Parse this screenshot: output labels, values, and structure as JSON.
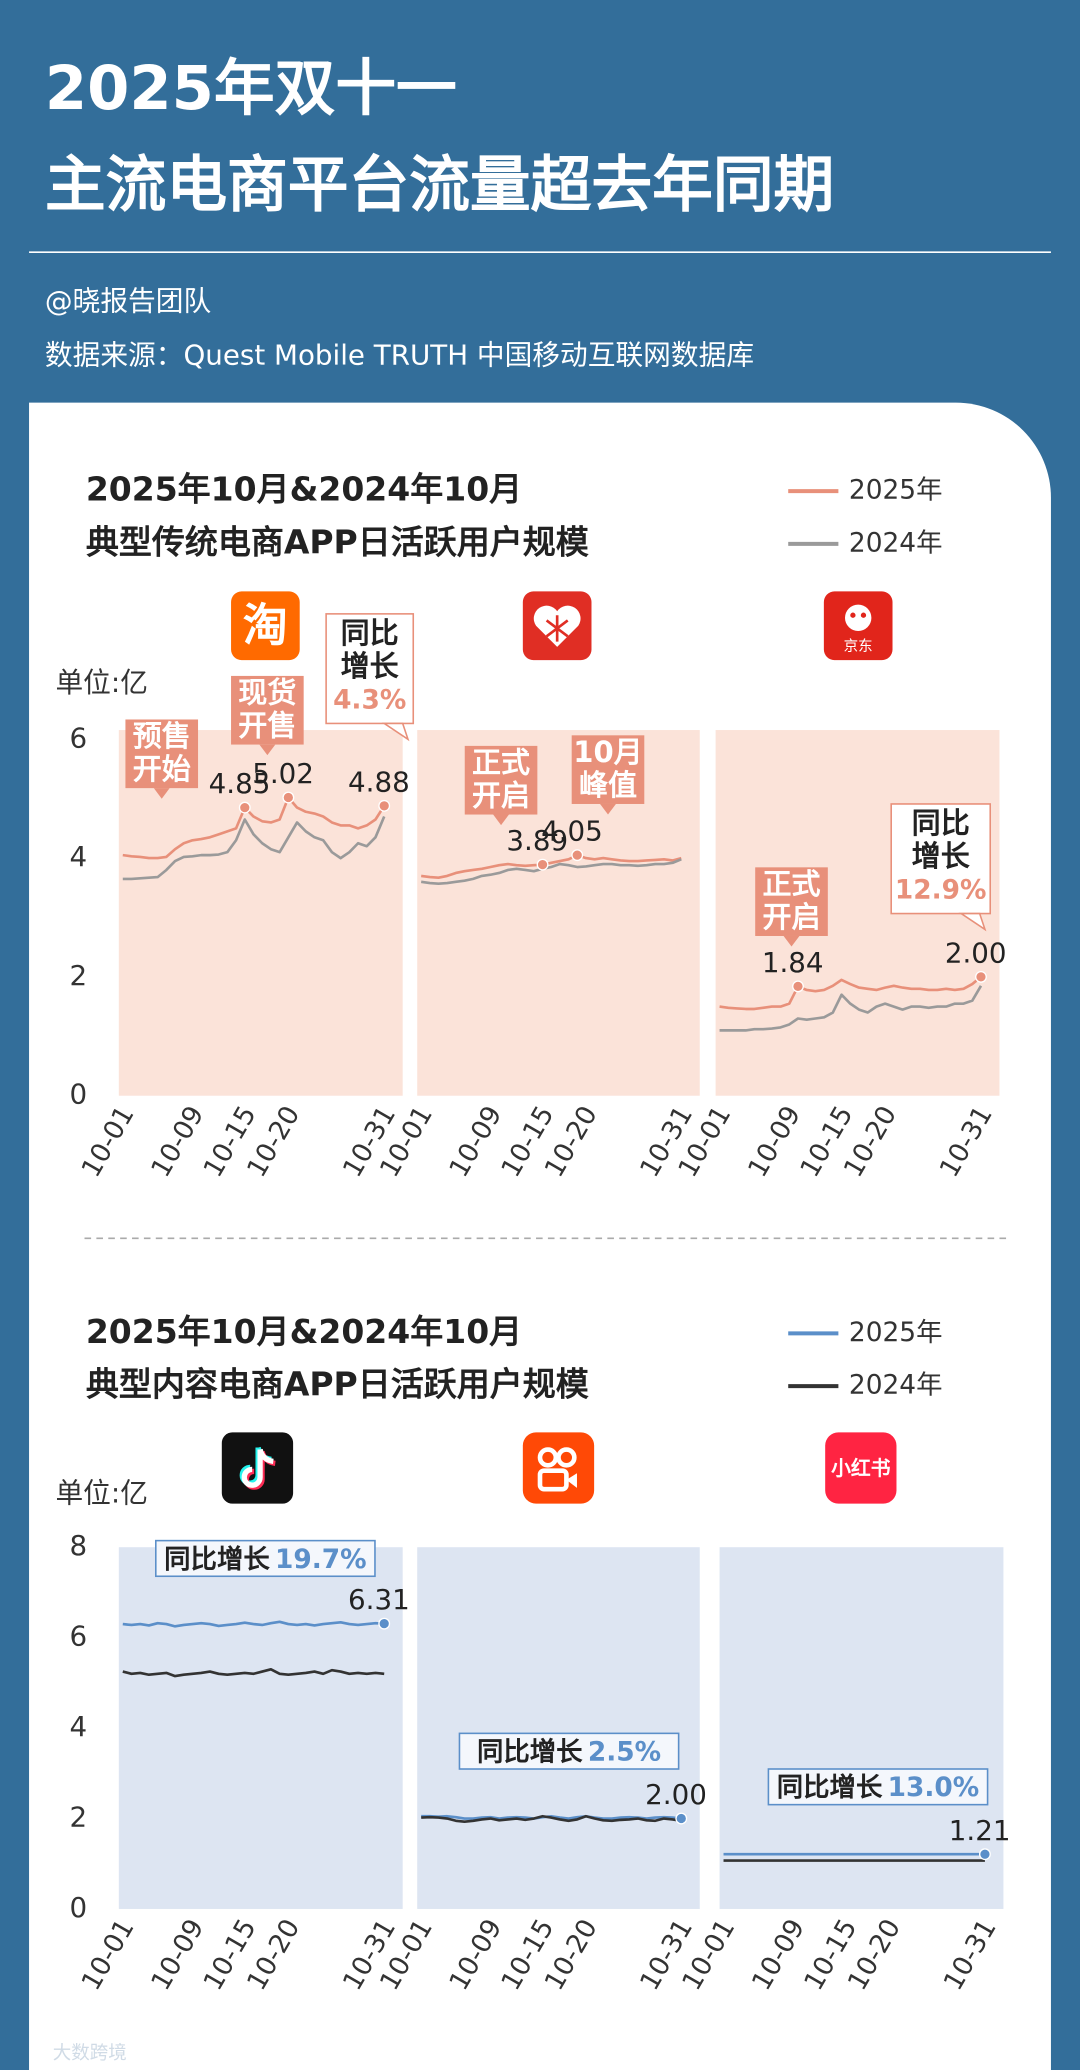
{
  "header": {
    "title": [
      "2025年双十一",
      "主流电商平台流量超去年同期"
    ],
    "author": "@晓报告团队",
    "source": "数据来源：Quest Mobile TRUTH 中国移动互联网数据库"
  },
  "chart_data": [
    {
      "type": "line",
      "title": "2025年10月&2024年10月",
      "subtitle": "典型传统电商APP日活跃用户规模",
      "ylabel": "单位:亿",
      "ylim": [
        0,
        6
      ],
      "yticks": [
        0,
        2,
        4,
        6
      ],
      "legend": [
        {
          "name": "2025年",
          "color": "#e8907a"
        },
        {
          "name": "2024年",
          "color": "#9a9a9a"
        }
      ],
      "categories": [
        "10-01",
        null,
        null,
        null,
        null,
        null,
        null,
        null,
        "10-09",
        null,
        null,
        null,
        null,
        null,
        "10-15",
        null,
        null,
        null,
        null,
        "10-20",
        null,
        null,
        null,
        null,
        null,
        null,
        null,
        null,
        null,
        null,
        "10-31"
      ],
      "panels": [
        {
          "logo_text": "淘",
          "annotations": [
            [
              "预售",
              "开始"
            ],
            [
              "现货",
              "开售"
            ]
          ],
          "callout": {
            "lines": [
              "同比",
              "增长"
            ],
            "value": "4.3%"
          },
          "series": [
            {
              "values": [
                4.05,
                4.03,
                4.02,
                4.0,
                4.0,
                4.02,
                4.15,
                4.25,
                4.3,
                4.32,
                4.35,
                4.4,
                4.45,
                4.5,
                4.85,
                4.7,
                4.62,
                4.6,
                4.65,
                5.02,
                4.85,
                4.78,
                4.75,
                4.7,
                4.6,
                4.55,
                4.55,
                4.5,
                4.55,
                4.65,
                4.88
              ],
              "value_labels": [
                null,
                null,
                null,
                null,
                null,
                null,
                null,
                null,
                null,
                null,
                null,
                null,
                null,
                null,
                "4.85",
                null,
                null,
                null,
                null,
                "5.02",
                null,
                null,
                null,
                null,
                null,
                null,
                null,
                null,
                null,
                null,
                "4.88"
              ]
            },
            {
              "values": [
                3.65,
                3.65,
                3.66,
                3.67,
                3.68,
                3.8,
                3.95,
                4.02,
                4.03,
                4.05,
                4.05,
                4.06,
                4.1,
                4.3,
                4.65,
                4.4,
                4.25,
                4.15,
                4.1,
                4.35,
                4.6,
                4.45,
                4.35,
                4.3,
                4.1,
                4.0,
                4.1,
                4.25,
                4.2,
                4.35,
                4.7
              ]
            }
          ]
        },
        {
          "annotations": [
            [
              "正式",
              "开启"
            ],
            [
              "10月",
              "峰值"
            ]
          ],
          "series": [
            {
              "values": [
                3.7,
                3.68,
                3.67,
                3.7,
                3.75,
                3.78,
                3.8,
                3.82,
                3.85,
                3.88,
                3.9,
                3.88,
                3.87,
                3.88,
                3.89,
                3.92,
                3.95,
                3.98,
                4.05,
                4.0,
                3.98,
                4.0,
                3.98,
                3.96,
                3.95,
                3.95,
                3.96,
                3.97,
                3.98,
                3.96,
                4.0
              ],
              "value_labels": [
                null,
                null,
                null,
                null,
                null,
                null,
                null,
                null,
                null,
                null,
                null,
                null,
                null,
                null,
                "3.89",
                null,
                null,
                null,
                "4.05",
                null,
                null,
                null,
                null,
                null,
                null,
                null,
                null,
                null,
                null,
                null,
                null
              ]
            },
            {
              "values": [
                3.6,
                3.58,
                3.57,
                3.58,
                3.6,
                3.62,
                3.65,
                3.7,
                3.72,
                3.75,
                3.8,
                3.82,
                3.8,
                3.78,
                3.82,
                3.85,
                3.9,
                3.88,
                3.85,
                3.86,
                3.88,
                3.9,
                3.9,
                3.88,
                3.88,
                3.87,
                3.88,
                3.9,
                3.9,
                3.92,
                3.98
              ]
            }
          ]
        },
        {
          "logo_text": "京东",
          "annotations": [
            [
              "正式",
              "开启"
            ]
          ],
          "callout": {
            "lines": [
              "同比",
              "增长"
            ],
            "value": "12.9%"
          },
          "series": [
            {
              "values": [
                1.5,
                1.48,
                1.47,
                1.46,
                1.46,
                1.48,
                1.5,
                1.5,
                1.55,
                1.84,
                1.78,
                1.76,
                1.78,
                1.85,
                1.95,
                1.88,
                1.82,
                1.8,
                1.78,
                1.82,
                1.85,
                1.82,
                1.8,
                1.8,
                1.78,
                1.78,
                1.8,
                1.78,
                1.8,
                1.88,
                2.0
              ],
              "value_labels": [
                null,
                null,
                null,
                null,
                null,
                null,
                null,
                null,
                null,
                "1.84",
                null,
                null,
                null,
                null,
                null,
                null,
                null,
                null,
                null,
                null,
                null,
                null,
                null,
                null,
                null,
                null,
                null,
                null,
                null,
                null,
                "2.00"
              ]
            },
            {
              "values": [
                1.1,
                1.1,
                1.1,
                1.1,
                1.12,
                1.12,
                1.13,
                1.15,
                1.2,
                1.3,
                1.28,
                1.3,
                1.32,
                1.4,
                1.7,
                1.55,
                1.45,
                1.4,
                1.5,
                1.55,
                1.5,
                1.45,
                1.5,
                1.5,
                1.48,
                1.5,
                1.5,
                1.55,
                1.55,
                1.6,
                1.85
              ]
            }
          ]
        }
      ]
    },
    {
      "type": "line",
      "title": "2025年10月&2024年10月",
      "subtitle": "典型内容电商APP日活跃用户规模",
      "ylabel": "单位:亿",
      "ylim": [
        0,
        8
      ],
      "yticks": [
        0,
        2,
        4,
        6,
        8
      ],
      "legend": [
        {
          "name": "2025年",
          "color": "#5b8fc9"
        },
        {
          "name": "2024年",
          "color": "#333333"
        }
      ],
      "categories": [
        "10-01",
        null,
        null,
        null,
        null,
        null,
        null,
        null,
        "10-09",
        null,
        null,
        null,
        null,
        null,
        "10-15",
        null,
        null,
        null,
        null,
        "10-20",
        null,
        null,
        null,
        null,
        null,
        null,
        null,
        null,
        null,
        null,
        "10-31"
      ],
      "panels": [
        {
          "callout": {
            "lines": [
              "同比增长"
            ],
            "value": "19.7%"
          },
          "series": [
            {
              "values": [
                6.3,
                6.28,
                6.3,
                6.27,
                6.32,
                6.3,
                6.25,
                6.28,
                6.3,
                6.32,
                6.3,
                6.26,
                6.28,
                6.3,
                6.33,
                6.3,
                6.28,
                6.32,
                6.35,
                6.3,
                6.28,
                6.3,
                6.27,
                6.3,
                6.32,
                6.34,
                6.3,
                6.28,
                6.3,
                6.32,
                6.31
              ],
              "value_labels": [
                null,
                null,
                null,
                null,
                null,
                null,
                null,
                null,
                null,
                null,
                null,
                null,
                null,
                null,
                null,
                null,
                null,
                null,
                null,
                null,
                null,
                null,
                null,
                null,
                null,
                null,
                null,
                null,
                null,
                null,
                "6.31"
              ]
            },
            {
              "values": [
                5.25,
                5.2,
                5.22,
                5.18,
                5.2,
                5.22,
                5.15,
                5.18,
                5.2,
                5.22,
                5.25,
                5.2,
                5.18,
                5.2,
                5.22,
                5.2,
                5.25,
                5.3,
                5.2,
                5.18,
                5.2,
                5.22,
                5.25,
                5.2,
                5.28,
                5.25,
                5.2,
                5.22,
                5.2,
                5.22,
                5.2
              ]
            }
          ]
        },
        {
          "callout": {
            "lines": [
              "同比增长"
            ],
            "value": "2.5%"
          },
          "series": [
            {
              "values": [
                2.05,
                2.05,
                2.04,
                2.05,
                2.03,
                2.0,
                2.0,
                2.02,
                2.03,
                2.0,
                2.02,
                2.03,
                2.02,
                2.0,
                2.03,
                2.05,
                2.02,
                2.0,
                2.03,
                2.05,
                2.02,
                2.0,
                2.0,
                2.02,
                2.03,
                2.02,
                2.0,
                2.02,
                2.03,
                2.02,
                2.0
              ],
              "value_labels": [
                null,
                null,
                null,
                null,
                null,
                null,
                null,
                null,
                null,
                null,
                null,
                null,
                null,
                null,
                null,
                null,
                null,
                null,
                null,
                null,
                null,
                null,
                null,
                null,
                null,
                null,
                null,
                null,
                null,
                null,
                "2.00"
              ]
            },
            {
              "values": [
                2.02,
                2.03,
                2.02,
                2.0,
                1.95,
                1.93,
                1.95,
                1.98,
                2.0,
                1.96,
                1.98,
                2.0,
                1.97,
                2.0,
                2.05,
                2.02,
                1.98,
                1.95,
                1.98,
                2.05,
                2.0,
                1.96,
                1.95,
                1.97,
                1.98,
                2.0,
                1.96,
                1.95,
                2.0,
                1.98,
                1.95
              ]
            }
          ]
        },
        {
          "logo_text": "小红书",
          "callout": {
            "lines": [
              "同比增长"
            ],
            "value": "13.0%"
          },
          "series": [
            {
              "values": [
                1.21,
                1.21,
                1.21,
                1.21,
                1.21,
                1.21,
                1.21,
                1.21,
                1.21,
                1.21,
                1.21,
                1.21,
                1.21,
                1.21,
                1.21,
                1.21,
                1.21,
                1.21,
                1.21,
                1.21,
                1.21,
                1.21,
                1.21,
                1.21,
                1.21,
                1.21,
                1.21,
                1.21,
                1.21,
                1.21,
                1.21
              ],
              "value_labels": [
                null,
                null,
                null,
                null,
                null,
                null,
                null,
                null,
                null,
                null,
                null,
                null,
                null,
                null,
                null,
                null,
                null,
                null,
                null,
                null,
                null,
                null,
                null,
                null,
                null,
                null,
                null,
                null,
                null,
                null,
                "1.21"
              ]
            },
            {
              "values": [
                1.07,
                1.07,
                1.07,
                1.07,
                1.07,
                1.07,
                1.07,
                1.07,
                1.07,
                1.07,
                1.07,
                1.07,
                1.07,
                1.07,
                1.07,
                1.07,
                1.07,
                1.07,
                1.07,
                1.07,
                1.07,
                1.07,
                1.07,
                1.07,
                1.07,
                1.07,
                1.07,
                1.07,
                1.07,
                1.07,
                1.07
              ]
            }
          ]
        }
      ]
    }
  ],
  "watermark": "大数跨境"
}
